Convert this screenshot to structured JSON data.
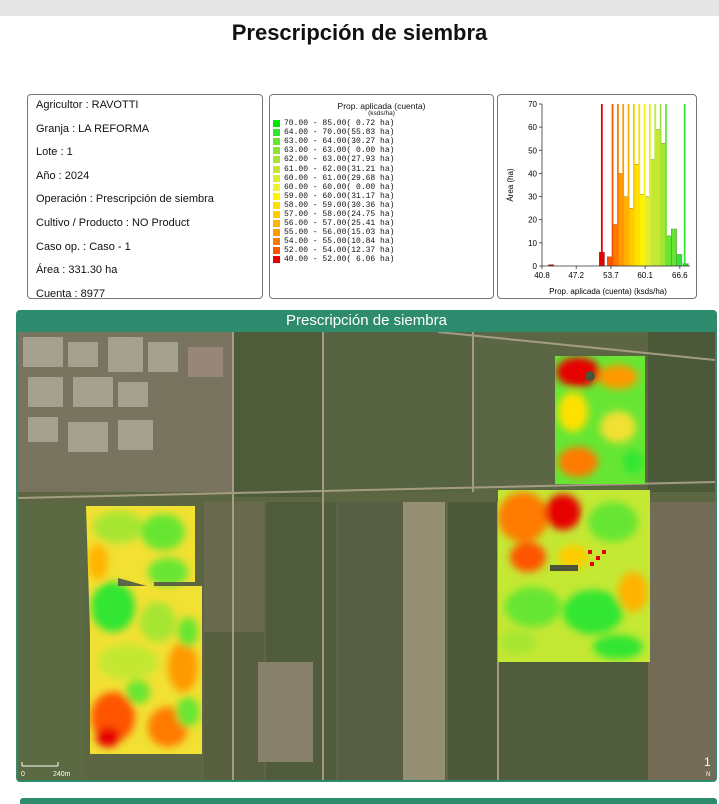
{
  "title": "Prescripción de siembra",
  "info": {
    "agricultor": "Agricultor : RAVOTTI",
    "granja": "Granja : LA REFORMA",
    "lote": "Lote : 1",
    "anio": "Año : 2024",
    "operacion": "Operación : Prescripción de siembra",
    "cultivo": "Cultivo / Producto : NO Product",
    "caso": "Caso op. : Caso - 1",
    "area": "Área : 331.30 ha",
    "cuenta": "Cuenta : 8977"
  },
  "legend": {
    "title": "Prop. aplicada (cuenta)",
    "unit": "(ksds/ha)",
    "rows": [
      {
        "label": "70.00 - 85.00( 0.72 ha)",
        "color": "#00e600"
      },
      {
        "label": "64.00 - 70.00(55.83 ha)",
        "color": "#33e633"
      },
      {
        "label": "63.00 - 64.00(30.27 ha)",
        "color": "#66e633"
      },
      {
        "label": "63.00 - 63.00( 0.00 ha)",
        "color": "#88e633"
      },
      {
        "label": "62.00 - 63.00(27.93 ha)",
        "color": "#a6e633"
      },
      {
        "label": "61.00 - 62.00(31.21 ha)",
        "color": "#c4e833"
      },
      {
        "label": "60.00 - 61.00(29.68 ha)",
        "color": "#dcee33"
      },
      {
        "label": "60.00 - 60.00( 0.00 ha)",
        "color": "#eef233"
      },
      {
        "label": "59.00 - 60.00(31.17 ha)",
        "color": "#fff200"
      },
      {
        "label": "58.00 - 59.00(30.36 ha)",
        "color": "#ffe000"
      },
      {
        "label": "57.00 - 58.00(24.75 ha)",
        "color": "#ffcc00"
      },
      {
        "label": "56.00 - 57.00(25.41 ha)",
        "color": "#ffb300"
      },
      {
        "label": "55.00 - 56.00(15.03 ha)",
        "color": "#ff9900"
      },
      {
        "label": "54.00 - 55.00(10.84 ha)",
        "color": "#ff7a00"
      },
      {
        "label": "52.00 - 54.00(12.37 ha)",
        "color": "#ff5500"
      },
      {
        "label": "40.00 - 52.00( 6.06 ha)",
        "color": "#e60000"
      }
    ]
  },
  "chart_data": {
    "type": "bar",
    "ylabel": "Área (ha)",
    "xlabel": "Prop. aplicada (cuenta) (ksds/ha)",
    "xlim": [
      40.8,
      68.5
    ],
    "ylim": [
      0,
      70
    ],
    "xticks": [
      "40.8",
      "47.2",
      "53.7",
      "60.1",
      "66.6"
    ],
    "yticks": [
      "0",
      "10",
      "20",
      "30",
      "40",
      "50",
      "60",
      "70"
    ],
    "bars": [
      {
        "x": 42.0,
        "w": 1.0,
        "v": 0.6,
        "color": "#e60000"
      },
      {
        "x": 51.5,
        "w": 1.0,
        "v": 6,
        "color": "#e60000"
      },
      {
        "x": 53.0,
        "w": 1.0,
        "v": 4,
        "color": "#ff5500"
      },
      {
        "x": 54.0,
        "w": 1.0,
        "v": 18,
        "color": "#ff7a00"
      },
      {
        "x": 55.0,
        "w": 1.0,
        "v": 40,
        "color": "#ff9900"
      },
      {
        "x": 56.0,
        "w": 1.0,
        "v": 30,
        "color": "#ffb300"
      },
      {
        "x": 57.0,
        "w": 1.0,
        "v": 25,
        "color": "#ffcc00"
      },
      {
        "x": 58.0,
        "w": 1.0,
        "v": 44,
        "color": "#ffe000"
      },
      {
        "x": 59.0,
        "w": 1.0,
        "v": 31,
        "color": "#fff200"
      },
      {
        "x": 60.0,
        "w": 1.0,
        "v": 30,
        "color": "#dcee33"
      },
      {
        "x": 61.0,
        "w": 1.0,
        "v": 46,
        "color": "#c4e833"
      },
      {
        "x": 62.0,
        "w": 1.0,
        "v": 59,
        "color": "#c4e833"
      },
      {
        "x": 63.0,
        "w": 1.0,
        "v": 53,
        "color": "#a6e633"
      },
      {
        "x": 64.0,
        "w": 1.0,
        "v": 13,
        "color": "#66e633"
      },
      {
        "x": 65.0,
        "w": 1.0,
        "v": 16,
        "color": "#66e633"
      },
      {
        "x": 66.0,
        "w": 1.0,
        "v": 5,
        "color": "#33e633"
      },
      {
        "x": 67.2,
        "w": 1.0,
        "v": 1,
        "color": "#00e600"
      }
    ],
    "vlines": [
      {
        "x": 52.0,
        "color": "#e60000"
      },
      {
        "x": 54.0,
        "color": "#ff5500"
      },
      {
        "x": 55.0,
        "color": "#ff7a00"
      },
      {
        "x": 56.0,
        "color": "#ff9900"
      },
      {
        "x": 57.0,
        "color": "#ffb300"
      },
      {
        "x": 58.0,
        "color": "#ffcc00"
      },
      {
        "x": 59.0,
        "color": "#ffe000"
      },
      {
        "x": 60.0,
        "color": "#fff200"
      },
      {
        "x": 61.0,
        "color": "#dcee33"
      },
      {
        "x": 62.0,
        "color": "#c4e833"
      },
      {
        "x": 63.0,
        "color": "#a6e633"
      },
      {
        "x": 64.0,
        "color": "#66e633"
      },
      {
        "x": 67.5,
        "color": "#33e633"
      }
    ]
  },
  "map": {
    "title": "Prescripción de siembra",
    "scale_text": "240m",
    "scale_zero": "0",
    "north_symbol": "1",
    "north_letter": "N"
  }
}
